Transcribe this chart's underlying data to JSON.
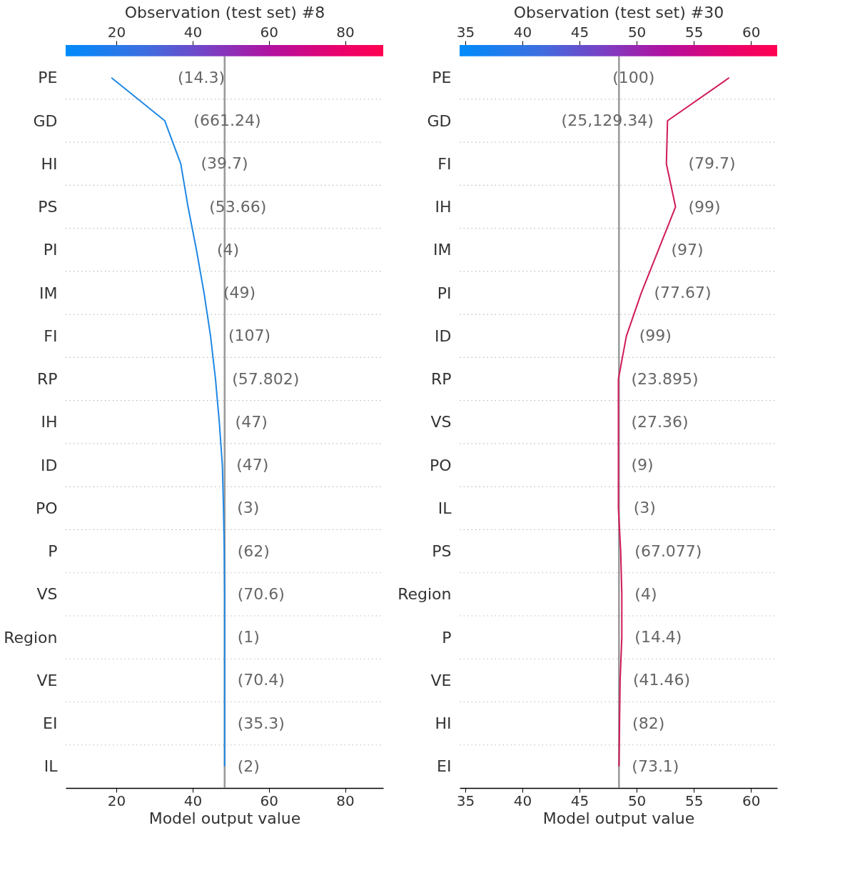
{
  "chart_data": [
    {
      "type": "line",
      "orientation": "horizontal",
      "x2label": "Observation (test set) #8",
      "xlabel": "Model output value",
      "categories": [
        "PE",
        "GD",
        "HI",
        "PS",
        "PI",
        "IM",
        "FI",
        "RP",
        "IH",
        "ID",
        "PO",
        "P",
        "VS",
        "Region",
        "VE",
        "EI",
        "IL"
      ],
      "series": [
        {
          "color": "#1e88e5",
          "values": [
            18.7,
            32.7,
            36.9,
            38.8,
            41.0,
            43.0,
            44.7,
            46.0,
            47.0,
            47.8,
            48.1,
            48.3,
            48.4,
            48.4,
            48.4,
            48.4,
            48.4
          ]
        }
      ],
      "annotations": [
        "(14.3)",
        "(661.24)",
        "(39.7)",
        "(53.66)",
        "(4)",
        "(49)",
        "(107)",
        "(57.802)",
        "(47)",
        "(47)",
        "(3)",
        "(62)",
        "(70.6)",
        "(1)",
        "(70.4)",
        "(35.3)",
        "(2)"
      ],
      "xlim": [
        6.7,
        90
      ],
      "xticks": [
        20,
        40,
        60,
        80
      ],
      "x2lim": [
        6.7,
        90
      ],
      "x2ticks": [
        20,
        40,
        60,
        80
      ],
      "ref_lines": [
        {
          "axis": "x",
          "value": 48.4,
          "color": "#999999"
        }
      ],
      "grid": "y"
    },
    {
      "type": "line",
      "orientation": "horizontal",
      "x2label": "Observation (test set)  #30",
      "xlabel": "Model output value",
      "categories": [
        "PE",
        "GD",
        "FI",
        "IH",
        "IM",
        "PI",
        "ID",
        "RP",
        "VS",
        "PO",
        "IL",
        "PS",
        "Region",
        "P",
        "VE",
        "HI",
        "EI"
      ],
      "series": [
        {
          "color": "#d01a5c",
          "values": [
            58.1,
            52.7,
            52.6,
            53.4,
            51.9,
            50.4,
            49.1,
            48.4,
            48.4,
            48.4,
            48.4,
            48.6,
            48.7,
            48.7,
            48.55,
            48.5,
            48.45
          ]
        }
      ],
      "annotations": [
        "(100)",
        "(25,129.34)",
        "(79.7)",
        "(99)",
        "(97)",
        "(77.67)",
        "(99)",
        "(23.895)",
        "(27.36)",
        "(9)",
        "(3)",
        "(67.077)",
        "(4)",
        "(14.4)",
        "(41.46)",
        "(82)",
        "(73.1)"
      ],
      "xlim": [
        34.5,
        62.3
      ],
      "xticks": [
        35,
        40,
        45,
        50,
        55,
        60
      ],
      "x2lim": [
        34.5,
        62.3
      ],
      "x2ticks": [
        35,
        40,
        45,
        50,
        55,
        60
      ],
      "ref_lines": [
        {
          "axis": "x",
          "value": 48.45,
          "color": "#999999"
        }
      ],
      "grid": "y"
    }
  ]
}
